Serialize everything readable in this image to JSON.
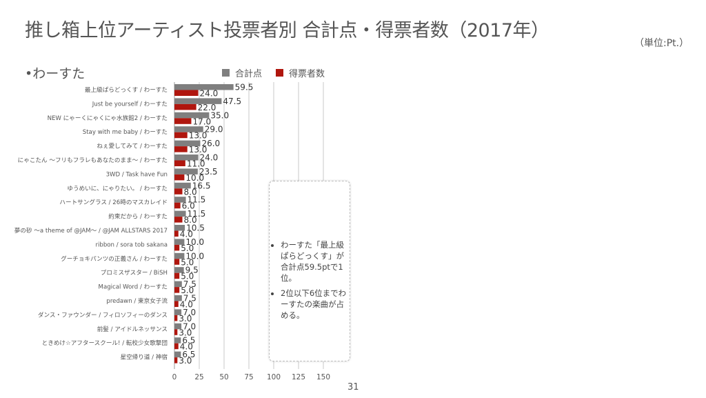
{
  "slide": {
    "title": "推し箱上位アーティスト投票者別 合計点・得票者数（2017年）",
    "unit": "（単位:Pt.）",
    "bullet": "•わーすた",
    "page_number": "31"
  },
  "note": {
    "items": [
      "わーすた「最上級ぱらどっくす」が合計点59.5ptで1位。",
      "2位以下6位までわーすたの楽曲が占める。"
    ]
  },
  "colors": {
    "total": "#7f7f7f",
    "voters": "#b0160e",
    "grid": "#c8c8c8"
  },
  "chart_data": {
    "type": "bar",
    "orientation": "horizontal",
    "categories": [
      "最上級ぱらどっくす / わーすた",
      "Just be yourself / わーすた",
      "NEW にゃーくにゃくにゃ水族館2 / わーすた",
      "Stay with me baby / わーすた",
      "ねぇ愛してみて / わーすた",
      "にゃこたん 〜フリもフラレもあなたのまま〜 / わーすた",
      "3WD / Task have Fun",
      "ゆうめいに、にゃりたい。 / わーすた",
      "ハートサングラス / 26時のマスカレイド",
      "約束だから / わーすた",
      "夢の砂 〜a theme of @JAM〜 / @JAM ALLSTARS 2017",
      "ribbon / sora tob sakana",
      "グーチョキパンツの正義さん / わーすた",
      "プロミスザスター / BiSH",
      "Magical Word / わーすた",
      "predawn / 東京女子流",
      "ダンス・ファウンダー / フィロソフィーのダンス",
      "前髪 / アイドルネッサンス",
      "ときめけ☆アフタースクール! / 転校少女歌撃団",
      "星空帰り道 / 神宿"
    ],
    "series": [
      {
        "name": "合計点",
        "values": [
          59.5,
          47.5,
          35.0,
          29.0,
          26.0,
          24.0,
          23.5,
          16.5,
          11.5,
          11.5,
          10.5,
          10.0,
          10.0,
          9.5,
          7.5,
          7.5,
          7.0,
          7.0,
          6.5,
          6.5
        ]
      },
      {
        "name": "得票者数",
        "values": [
          24.0,
          22.0,
          17.0,
          13.0,
          13.0,
          11.0,
          10.0,
          8.0,
          6.0,
          8.0,
          4.0,
          5.0,
          5.0,
          5.0,
          5.0,
          4.0,
          3.0,
          3.0,
          4.0,
          3.0
        ]
      }
    ],
    "value_labels": [
      [
        "59.5",
        "47.5",
        "35.0",
        "29.0",
        "26.0",
        "24.0",
        "23.5",
        "16.5",
        "11.5",
        "11.5",
        "10.5",
        "10.0",
        "10.0",
        "9.5",
        "7.5",
        "7.5",
        "7.0",
        "7.0",
        "6.5",
        "6.5"
      ],
      [
        "24.0",
        "22.0",
        "17.0",
        "13.0",
        "13.0",
        "11.0",
        "10.0",
        "8.0",
        "6.0",
        "8.0",
        "4.0",
        "5.0",
        "5.0",
        "5.0",
        "5.0",
        "4.0",
        "3.0",
        "3.0",
        "4.0",
        "3.0"
      ]
    ],
    "x_ticks": [
      "0",
      "25",
      "50",
      "75",
      "100",
      "125",
      "150"
    ],
    "xlim": [
      0,
      160
    ],
    "grid": true,
    "legend_position": "top"
  }
}
